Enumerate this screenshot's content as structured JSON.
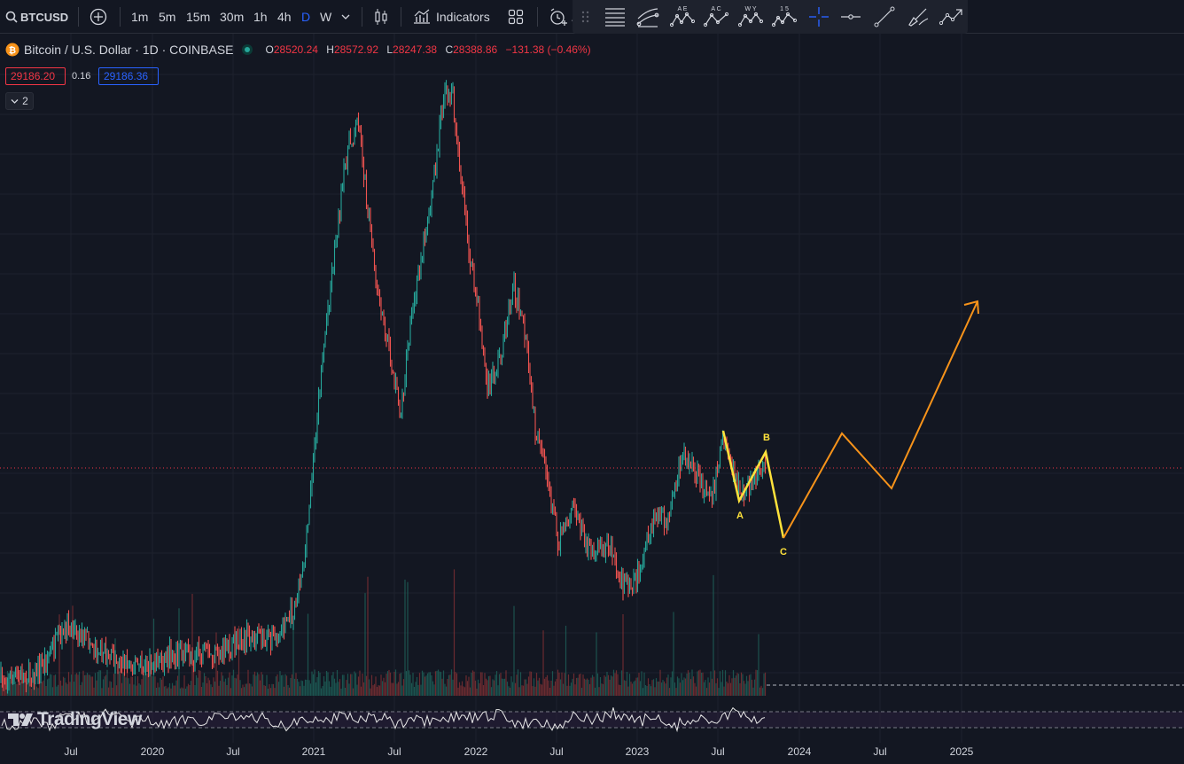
{
  "toolbar": {
    "symbol": "BTCUSD",
    "timeframes": [
      "1m",
      "5m",
      "15m",
      "30m",
      "1h",
      "4h",
      "D",
      "W"
    ],
    "active_timeframe": "D",
    "indicators_label": "Indicators",
    "alert_partial": "A",
    "drawing_tool_icons": [
      "horizontal-lines-icon",
      "fib-channel-icon",
      "elliott-ae-icon",
      "elliott-ac-icon",
      "elliott-wy-icon",
      "elliott-15-icon",
      "crosshair-icon",
      "horizontal-ray-icon",
      "trend-line-icon",
      "brush-icon",
      "path-icon"
    ],
    "elliott_labels": {
      "ae": "A E",
      "ac": "A C",
      "wy": "W Y",
      "n15": "1 5"
    }
  },
  "legend": {
    "title": "Bitcoin / U.S. Dollar · 1D · COINBASE",
    "open_k": "O",
    "open": "28520.24",
    "high_k": "H",
    "high": "28572.92",
    "low_k": "L",
    "low": "28247.38",
    "close_k": "C",
    "close": "28388.86",
    "change": "−131.38 (−0.46%)",
    "sell_price": "29186.20",
    "spread": "0.16",
    "buy_price": "29186.36",
    "collapse_count": "2"
  },
  "wave_labels": {
    "a": "A",
    "b": "B",
    "c": "C"
  },
  "x_axis": [
    "Jul",
    "2020",
    "Jul",
    "2021",
    "Jul",
    "2022",
    "Jul",
    "2023",
    "Jul",
    "2024",
    "Jul",
    "2025"
  ],
  "watermark": "TradingView",
  "colors": {
    "background": "#131722",
    "up": "#26a69a",
    "down": "#ef5350",
    "wave_yellow": "#ffe23b",
    "projection_orange": "#f7931a",
    "active_tf": "#2962ff",
    "price_line": "#f23645"
  }
}
